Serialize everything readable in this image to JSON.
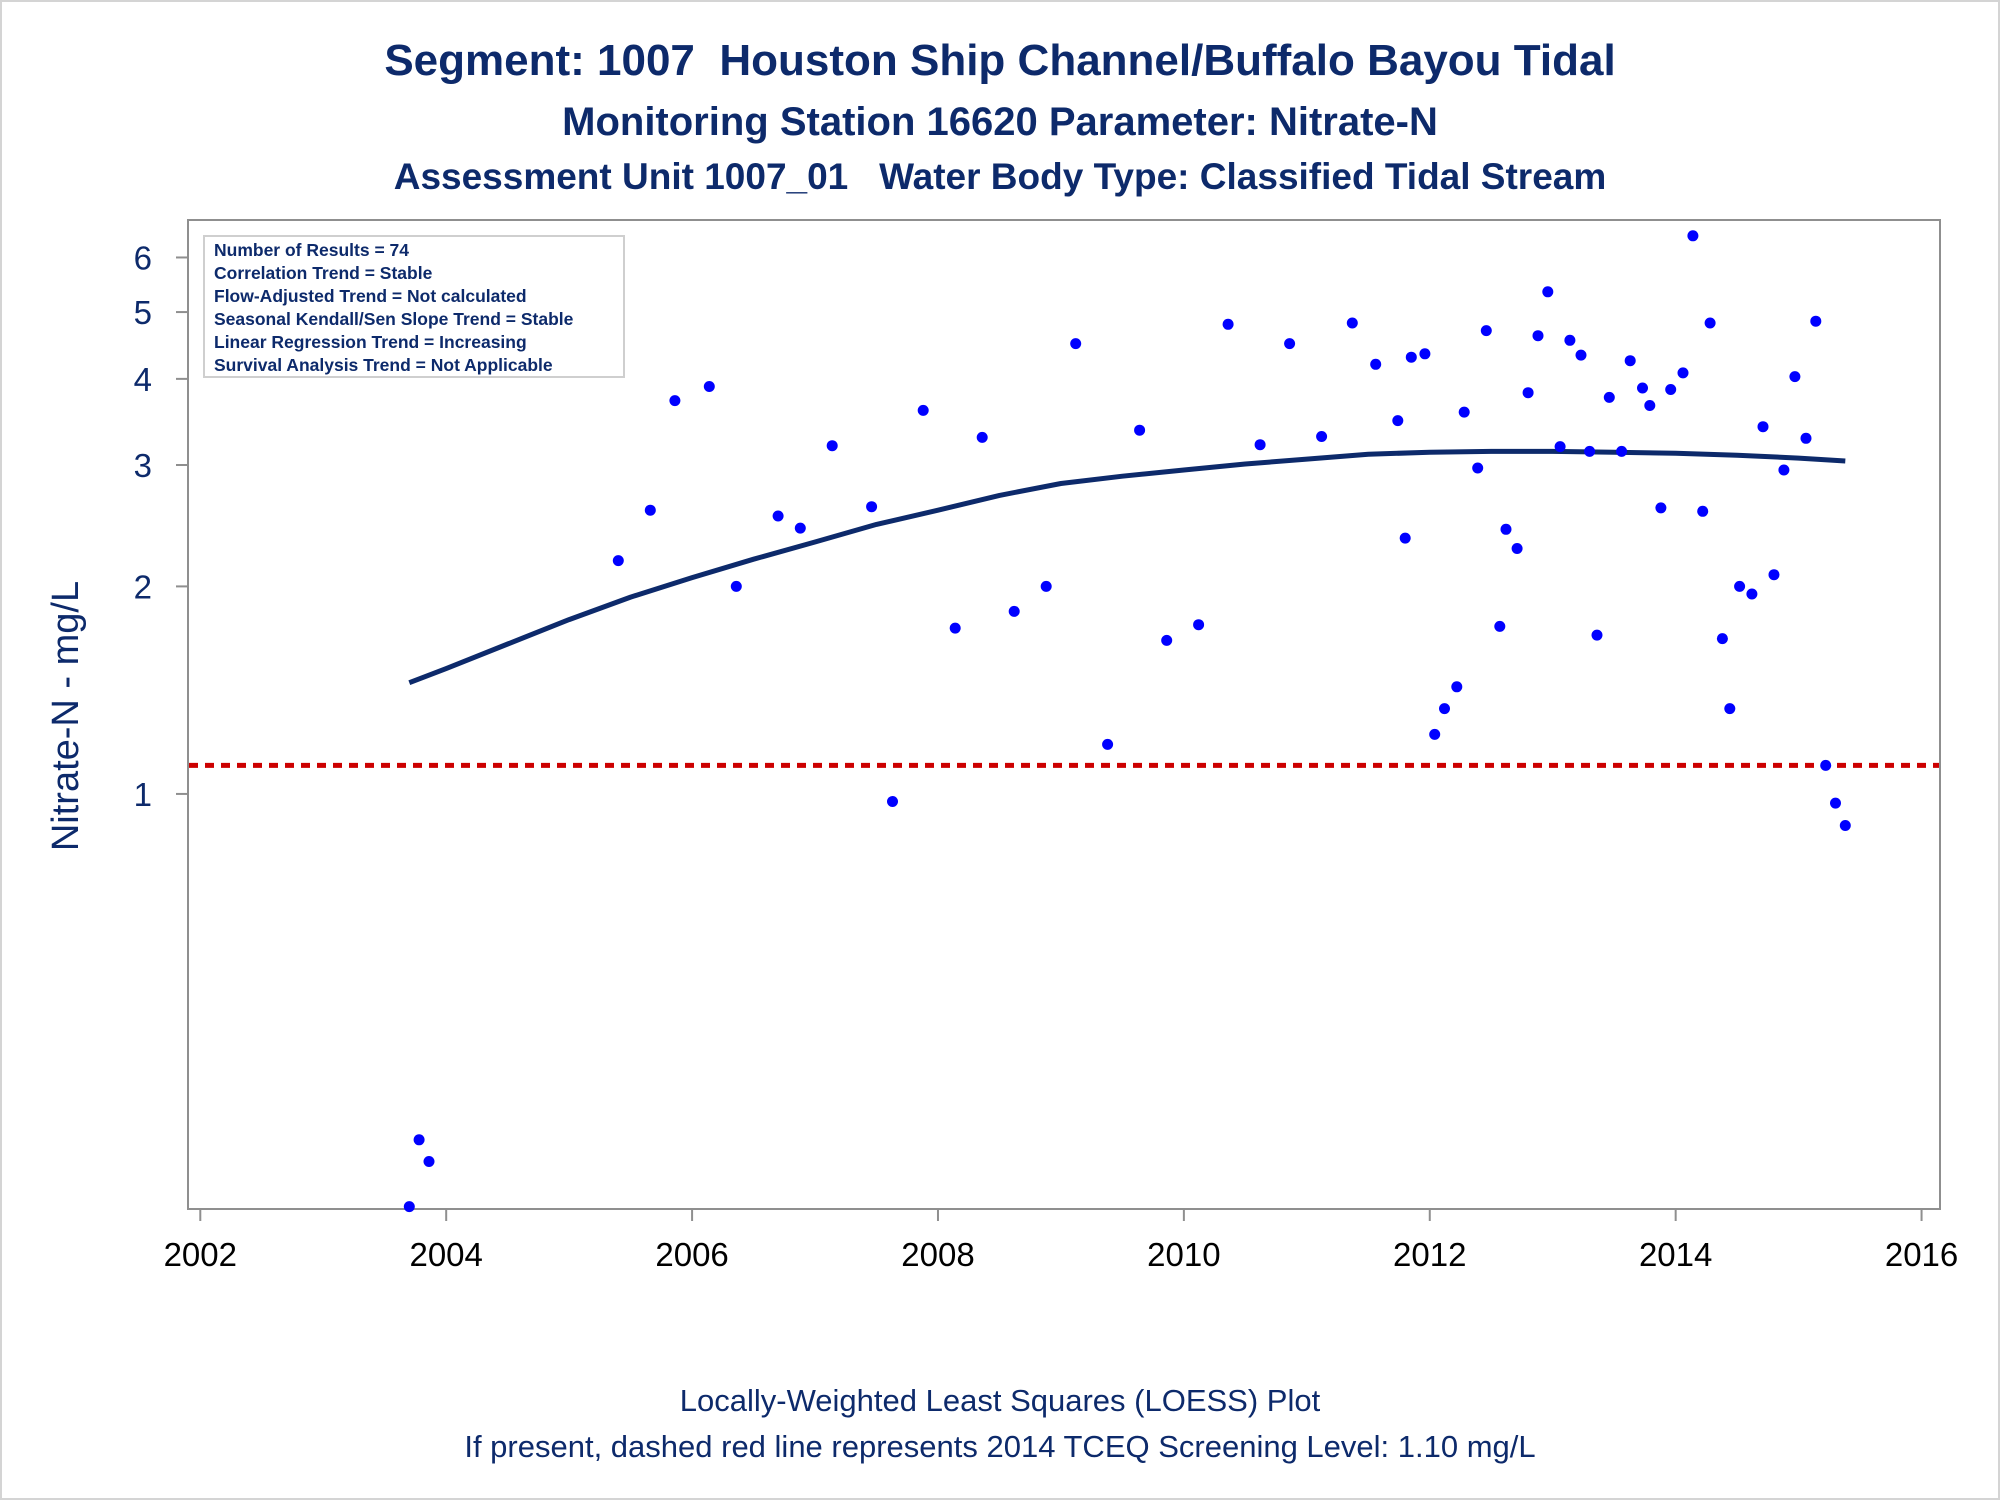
{
  "chart_data": {
    "type": "scatter",
    "title": "Segment: 1007  Houston Ship Channel/Buffalo Bayou Tidal",
    "subtitle": "Monitoring Station 16620 Parameter: Nitrate-N",
    "subtitle2": "Assessment Unit 1007_01   Water Body Type: Classified Tidal Stream",
    "ylabel": "Nitrate-N - mg/L",
    "xlabel": "",
    "x_ticks": [
      "2002",
      "2004",
      "2006",
      "2008",
      "2010",
      "2012",
      "2014",
      "2016"
    ],
    "y_ticks": [
      "1",
      "2",
      "3",
      "4",
      "5",
      "6"
    ],
    "y_scale": "log",
    "xlim": [
      2001.9,
      2016.15
    ],
    "ylim": [
      0.25,
      6.8
    ],
    "grid": false,
    "inset_lines": [
      "Number of Results = 74",
      "Correlation Trend = Stable",
      "Flow-Adjusted Trend = Not calculated",
      "Seasonal Kendall/Sen Slope Trend = Stable",
      "Linear Regression Trend = Increasing",
      "Survival Analysis Trend = Not Applicable"
    ],
    "screening_level": 1.1,
    "colors": {
      "points": "#0000ff",
      "loess": "#0d2a6b",
      "screening": "#cc0000",
      "frame": "#8f8f8f",
      "text": "#0d2a6b"
    },
    "points": [
      [
        2003.7,
        0.252
      ],
      [
        2003.78,
        0.315
      ],
      [
        2003.86,
        0.293
      ],
      [
        2005.4,
        2.18
      ],
      [
        2005.66,
        2.58
      ],
      [
        2005.86,
        3.72
      ],
      [
        2006.14,
        3.9
      ],
      [
        2006.36,
        2.0
      ],
      [
        2006.7,
        2.53
      ],
      [
        2006.88,
        2.43
      ],
      [
        2007.14,
        3.2
      ],
      [
        2007.46,
        2.61
      ],
      [
        2007.63,
        0.975
      ],
      [
        2007.88,
        3.6
      ],
      [
        2008.14,
        1.74
      ],
      [
        2008.36,
        3.29
      ],
      [
        2008.62,
        1.84
      ],
      [
        2008.88,
        2.0
      ],
      [
        2009.12,
        4.5
      ],
      [
        2009.38,
        1.18
      ],
      [
        2009.64,
        3.37
      ],
      [
        2009.86,
        1.67
      ],
      [
        2010.12,
        1.76
      ],
      [
        2010.36,
        4.8
      ],
      [
        2010.62,
        3.21
      ],
      [
        2010.86,
        4.5
      ],
      [
        2011.12,
        3.3
      ],
      [
        2011.37,
        4.82
      ],
      [
        2011.56,
        4.2
      ],
      [
        2011.74,
        3.48
      ],
      [
        2011.8,
        2.35
      ],
      [
        2011.85,
        4.3
      ],
      [
        2011.96,
        4.35
      ],
      [
        2012.04,
        1.22
      ],
      [
        2012.12,
        1.33
      ],
      [
        2012.22,
        1.43
      ],
      [
        2012.28,
        3.58
      ],
      [
        2012.39,
        2.97
      ],
      [
        2012.46,
        4.7
      ],
      [
        2012.57,
        1.75
      ],
      [
        2012.62,
        2.42
      ],
      [
        2012.71,
        2.27
      ],
      [
        2012.8,
        3.82
      ],
      [
        2012.88,
        4.62
      ],
      [
        2012.96,
        5.35
      ],
      [
        2013.06,
        3.19
      ],
      [
        2013.14,
        4.55
      ],
      [
        2013.23,
        4.33
      ],
      [
        2013.3,
        3.14
      ],
      [
        2013.36,
        1.7
      ],
      [
        2013.46,
        3.76
      ],
      [
        2013.56,
        3.14
      ],
      [
        2013.63,
        4.25
      ],
      [
        2013.73,
        3.88
      ],
      [
        2013.79,
        3.66
      ],
      [
        2013.88,
        2.6
      ],
      [
        2013.96,
        3.86
      ],
      [
        2014.06,
        4.08
      ],
      [
        2014.14,
        6.45
      ],
      [
        2014.22,
        2.57
      ],
      [
        2014.28,
        4.82
      ],
      [
        2014.38,
        1.68
      ],
      [
        2014.44,
        1.33
      ],
      [
        2014.52,
        2.0
      ],
      [
        2014.62,
        1.95
      ],
      [
        2014.71,
        3.41
      ],
      [
        2014.8,
        2.08
      ],
      [
        2014.88,
        2.95
      ],
      [
        2014.97,
        4.03
      ],
      [
        2015.06,
        3.28
      ],
      [
        2015.14,
        4.85
      ],
      [
        2015.22,
        1.1
      ],
      [
        2015.3,
        0.97
      ],
      [
        2015.38,
        0.9
      ]
    ],
    "loess": [
      [
        2003.7,
        1.45
      ],
      [
        2004.0,
        1.52
      ],
      [
        2004.5,
        1.65
      ],
      [
        2005.0,
        1.79
      ],
      [
        2005.5,
        1.93
      ],
      [
        2006.0,
        2.06
      ],
      [
        2006.5,
        2.19
      ],
      [
        2007.0,
        2.32
      ],
      [
        2007.5,
        2.46
      ],
      [
        2008.0,
        2.58
      ],
      [
        2008.5,
        2.71
      ],
      [
        2009.0,
        2.82
      ],
      [
        2009.5,
        2.89
      ],
      [
        2010.0,
        2.95
      ],
      [
        2010.5,
        3.01
      ],
      [
        2011.0,
        3.06
      ],
      [
        2011.5,
        3.11
      ],
      [
        2012.0,
        3.13
      ],
      [
        2012.5,
        3.14
      ],
      [
        2013.0,
        3.14
      ],
      [
        2013.5,
        3.13
      ],
      [
        2014.0,
        3.12
      ],
      [
        2014.5,
        3.1
      ],
      [
        2015.0,
        3.07
      ],
      [
        2015.38,
        3.04
      ]
    ]
  },
  "footer": {
    "line1": "Locally-Weighted Least Squares (LOESS) Plot",
    "line2": "If present, dashed red line represents 2014 TCEQ Screening Level: 1.10 mg/L"
  }
}
